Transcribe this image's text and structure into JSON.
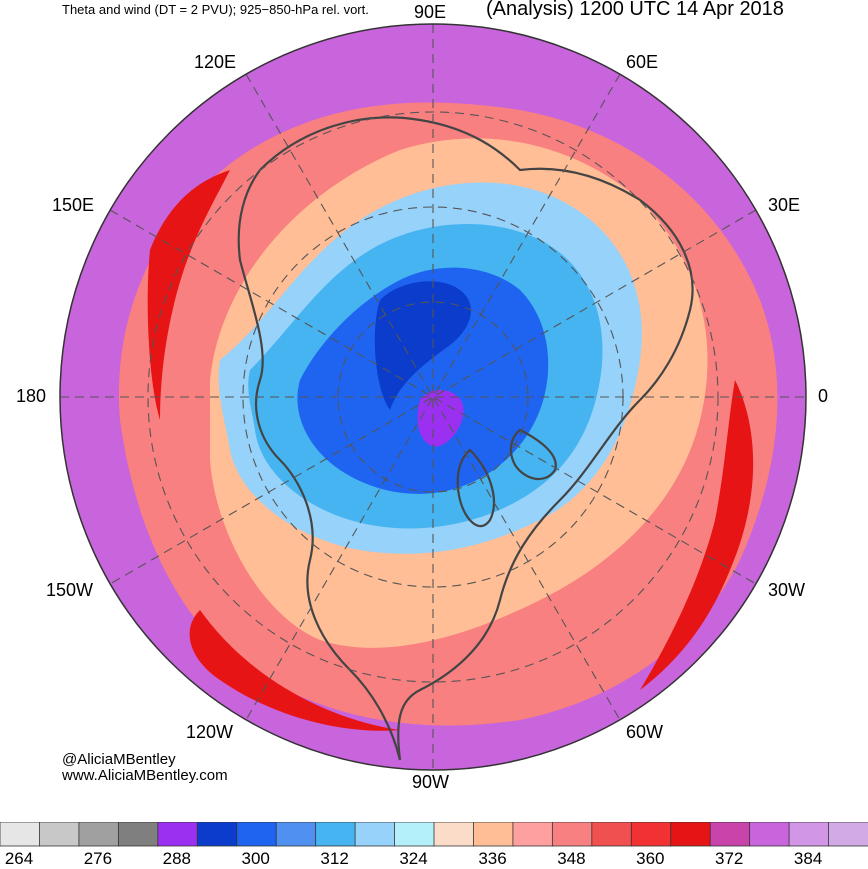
{
  "header": {
    "left_title": "Theta and wind (DT = 2 PVU); 925−850-hPa rel. vort.",
    "right_title": "(Analysis) 1200 UTC 14 Apr 2018"
  },
  "longitude_labels": {
    "lon_90e": "90E",
    "lon_120e": "120E",
    "lon_60e": "60E",
    "lon_150e": "150E",
    "lon_30e": "30E",
    "lon_180": "180",
    "lon_0": "0",
    "lon_150w": "150W",
    "lon_30w": "30W",
    "lon_120w": "120W",
    "lon_60w": "60W",
    "lon_90w": "90W"
  },
  "credits": {
    "handle": "@AliciaMBentley",
    "website": "www.AliciaMBentley.com"
  },
  "colorbar": {
    "colors": [
      "#e6e6e6",
      "#c8c8c8",
      "#a0a0a0",
      "#7f7f7f",
      "#9b30f0",
      "#0b3ccc",
      "#1e64f0",
      "#5090f0",
      "#46b4f0",
      "#96d2fa",
      "#b4f0fa",
      "#fadcc8",
      "#ffbe96",
      "#ffa0a0",
      "#f88080",
      "#f05050",
      "#f23232",
      "#e61414",
      "#c844aa",
      "#c864dc",
      "#d296e6",
      "#d2aae6"
    ],
    "tick_labels": [
      "264",
      "276",
      "288",
      "300",
      "312",
      "324",
      "336",
      "348",
      "360",
      "372",
      "384"
    ]
  },
  "map_colors": {
    "outer": "#c864dc",
    "warm_ring": "#f88080",
    "warm_light": "#ffbe96",
    "jet": "#e61414",
    "cold_light": "#96d2fa",
    "cold": "#46b4f0",
    "cold_deep": "#1e64f0",
    "cold_core": "#0b3ccc",
    "polar_core": "#9b30f0",
    "coast": "#444444"
  }
}
